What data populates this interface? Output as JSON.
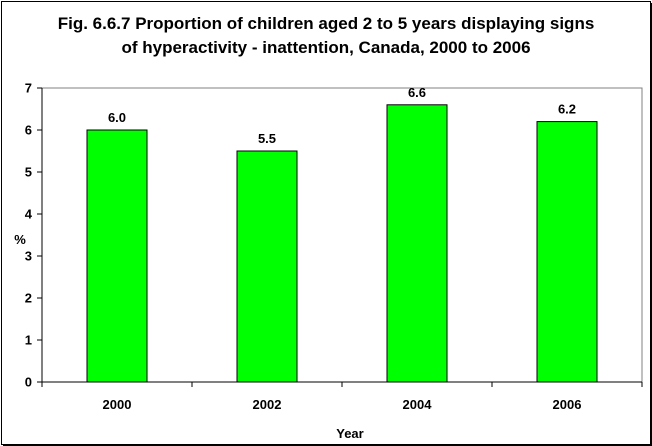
{
  "chart_data": {
    "type": "bar",
    "title_lines": [
      "Fig. 6.6.7 Proportion of children aged 2 to 5 years displaying signs",
      "of hyperactivity - inattention, Canada, 2000 to 2006"
    ],
    "categories": [
      "2000",
      "2002",
      "2004",
      "2006"
    ],
    "values": [
      6.0,
      5.5,
      6.6,
      6.2
    ],
    "data_labels": [
      "6.0",
      "5.5",
      "6.6",
      "6.2"
    ],
    "xlabel": "Year",
    "ylabel": "%",
    "ylim": [
      0,
      7
    ],
    "yticks": [
      "0",
      "1",
      "2",
      "3",
      "4",
      "5",
      "6",
      "7"
    ],
    "grid": false,
    "legend": "none",
    "colors": {
      "bar_fill": "#00ff00",
      "bar_stroke": "#000000",
      "plot_border": "#808080"
    }
  }
}
